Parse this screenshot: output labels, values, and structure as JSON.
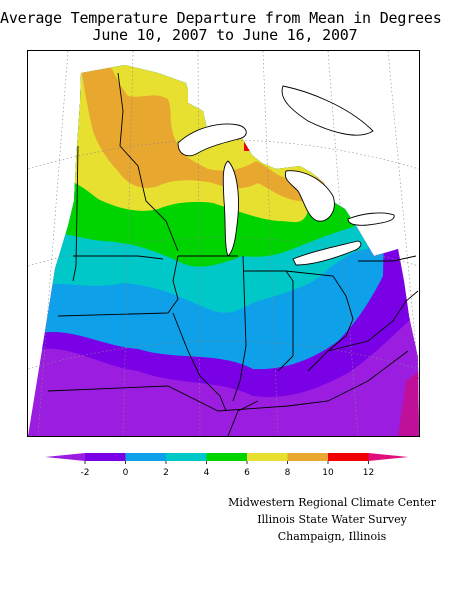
{
  "title": {
    "line1": "Average Temperature Departure from Mean in Degrees F",
    "line2": "June 10, 2007 to June 16, 2007"
  },
  "legend": {
    "tick_labels": [
      "-2",
      "0",
      "2",
      "4",
      "6",
      "8",
      "10",
      "12"
    ],
    "bins": [
      {
        "range": "< -2",
        "color": "#9b1ee0"
      },
      {
        "range": "-2 to 0",
        "color": "#7a00e6"
      },
      {
        "range": "0 to 2",
        "color": "#0ea0e8"
      },
      {
        "range": "2 to 4",
        "color": "#00c8c8"
      },
      {
        "range": "4 to 6",
        "color": "#00d400"
      },
      {
        "range": "6 to 8",
        "color": "#e8e030"
      },
      {
        "range": "8 to 10",
        "color": "#e8a830"
      },
      {
        "range": "10 to 12",
        "color": "#f00000"
      },
      {
        "range": "> 12",
        "color": "#e0107a"
      }
    ]
  },
  "credits": {
    "line1": "Midwestern Regional Climate Center",
    "line2": "Illinois State Water Survey",
    "line3": "Champaign, Illinois"
  },
  "map": {
    "region": "Midwest United States",
    "variable": "temperature departure from mean (°F)",
    "zones": [
      {
        "band": "< -2",
        "color": "#9b1ee0",
        "area": "southwest Missouri, southern Kentucky, far southeast"
      },
      {
        "band": "-2 to 0",
        "color": "#7a00e6",
        "area": "southern Missouri, Kentucky, southern Ohio, eastern edge"
      },
      {
        "band": "0 to 2",
        "color": "#0ea0e8",
        "area": "Iowa, northern Missouri, Illinois, Indiana, Ohio"
      },
      {
        "band": "2 to 4",
        "color": "#00c8c8",
        "area": "southern Minnesota, Wisconsin, northern Iowa, southern Michigan"
      },
      {
        "band": "4 to 6",
        "color": "#00d400",
        "area": "Minnesota, Wisconsin, lower Michigan"
      },
      {
        "band": "6 to 8",
        "color": "#e8e030",
        "area": "northern Minnesota, northern Wisconsin, northern lower Michigan"
      },
      {
        "band": "8 to 10",
        "color": "#e8a830",
        "area": "northern Minnesota, upper Michigan"
      },
      {
        "band": "10 to 12",
        "color": "#f00000",
        "area": "upper Michigan (small spot)"
      }
    ]
  }
}
